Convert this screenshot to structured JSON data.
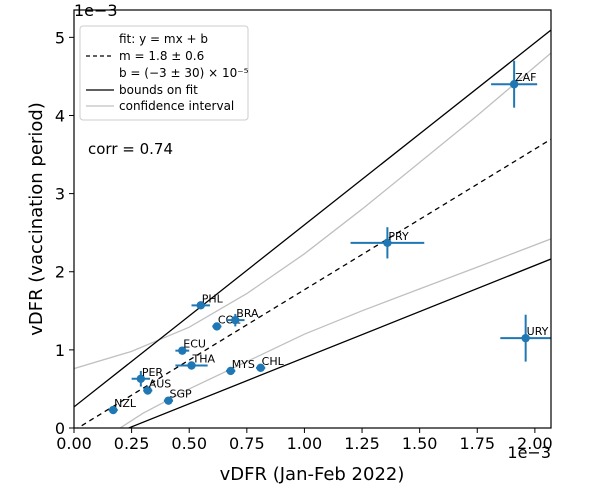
{
  "chart_data": {
    "type": "scatter",
    "xlabel": "vDFR (Jan-Feb 2022)",
    "ylabel": "vDFR (vaccination period)",
    "x_exponent": "1e−3",
    "y_exponent": "1e−3",
    "xlim": [
      0.0,
      2.07
    ],
    "ylim": [
      0.0,
      5.35
    ],
    "xticks": [
      0.0,
      0.25,
      0.5,
      0.75,
      1.0,
      1.25,
      1.5,
      1.75,
      2.0
    ],
    "xtick_labels": [
      "0.00",
      "0.25",
      "0.50",
      "0.75",
      "1.00",
      "1.25",
      "1.50",
      "1.75",
      "2.00"
    ],
    "yticks": [
      0,
      1,
      2,
      3,
      4,
      5
    ],
    "ytick_labels": [
      "0",
      "1",
      "2",
      "3",
      "4",
      "5"
    ],
    "grid": false,
    "legend_position": "upper-left",
    "annotation": "corr = 0.74",
    "points": [
      {
        "label": "NZL",
        "x": 0.17,
        "y": 0.23,
        "xerr": 0.02,
        "yerr": 0.04
      },
      {
        "label": "PER",
        "x": 0.29,
        "y": 0.63,
        "xerr": 0.04,
        "yerr": 0.1
      },
      {
        "label": "AUS",
        "x": 0.32,
        "y": 0.48,
        "xerr": 0.02,
        "yerr": 0.04
      },
      {
        "label": "SGP",
        "x": 0.41,
        "y": 0.35,
        "xerr": 0.02,
        "yerr": 0.03
      },
      {
        "label": "ECU",
        "x": 0.47,
        "y": 0.99,
        "xerr": 0.03,
        "yerr": 0.04
      },
      {
        "label": "THA",
        "x": 0.51,
        "y": 0.8,
        "xerr": 0.07,
        "yerr": 0.04
      },
      {
        "label": "PHL",
        "x": 0.55,
        "y": 1.57,
        "xerr": 0.04,
        "yerr": 0.03
      },
      {
        "label": "COL",
        "x": 0.62,
        "y": 1.3,
        "xerr": 0.02,
        "yerr": 0.04
      },
      {
        "label": "BRA",
        "x": 0.7,
        "y": 1.38,
        "xerr": 0.04,
        "yerr": 0.08
      },
      {
        "label": "MYS",
        "x": 0.68,
        "y": 0.73,
        "xerr": 0.02,
        "yerr": 0.04
      },
      {
        "label": "CHL",
        "x": 0.81,
        "y": 0.77,
        "xerr": 0.02,
        "yerr": 0.04
      },
      {
        "label": "PRY",
        "x": 1.36,
        "y": 2.37,
        "xerr": 0.16,
        "yerr": 0.2
      },
      {
        "label": "ZAF",
        "x": 1.91,
        "y": 4.4,
        "xerr": 0.1,
        "yerr": 0.3
      },
      {
        "label": "URY",
        "x": 1.96,
        "y": 1.15,
        "xerr": 0.11,
        "yerr": 0.3
      }
    ],
    "fit": {
      "m": 1.8,
      "b": -0.03
    },
    "bounds_on_fit": [
      {
        "m": 2.33,
        "b": 0.27
      },
      {
        "m": 1.18,
        "b": -0.28
      }
    ],
    "confidence_interval_upper": [
      [
        0.0,
        0.76
      ],
      [
        0.25,
        0.98
      ],
      [
        0.5,
        1.29
      ],
      [
        0.75,
        1.72
      ],
      [
        1.0,
        2.23
      ],
      [
        1.25,
        2.8
      ],
      [
        1.5,
        3.4
      ],
      [
        1.75,
        4.0
      ],
      [
        2.07,
        4.8
      ]
    ],
    "confidence_interval_lower": [
      [
        0.2,
        0.0
      ],
      [
        0.3,
        0.19
      ],
      [
        0.5,
        0.5
      ],
      [
        0.75,
        0.85
      ],
      [
        1.0,
        1.2
      ],
      [
        1.25,
        1.5
      ],
      [
        1.5,
        1.78
      ],
      [
        1.75,
        2.06
      ],
      [
        2.07,
        2.42
      ]
    ],
    "legend": [
      {
        "style": "none",
        "text": "fit: y = mx + b"
      },
      {
        "style": "dashed",
        "text": "m = 1.8 ± 0.6"
      },
      {
        "style": "none",
        "text": "b = (−3 ± 30) × 10⁻⁵"
      },
      {
        "style": "solid-black",
        "text": "bounds on fit"
      },
      {
        "style": "solid-gray",
        "text": "confidence interval"
      }
    ],
    "colors": {
      "points": "#1f77b4",
      "fit": "#000000",
      "bounds": "#000000",
      "confidence": "#c0c0c0"
    }
  }
}
